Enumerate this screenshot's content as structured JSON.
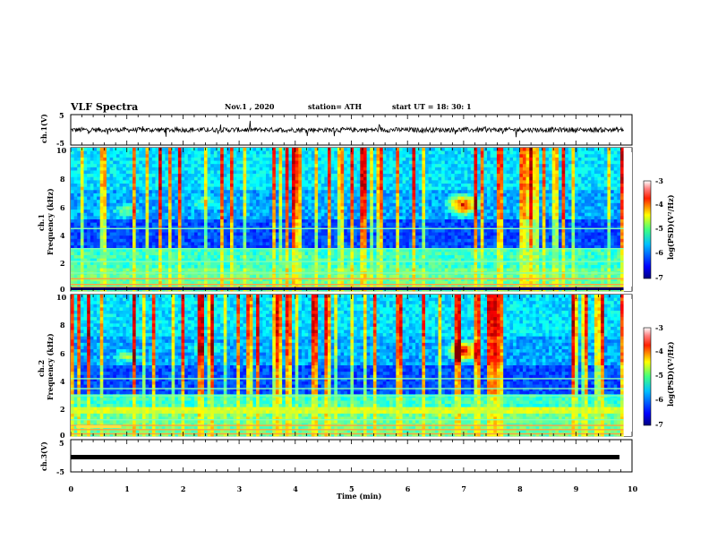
{
  "header": {
    "title": "VLF Spectra",
    "date": "Nov.1  , 2020",
    "station": "station= ATH",
    "start": "start  UT =   18: 30: 1"
  },
  "chart_data": [
    {
      "type": "line",
      "panel": "ch1_waveform",
      "ylabel": "ch.1(V)",
      "ylim": [
        -5,
        5
      ],
      "yticks": [
        "5",
        "-5"
      ],
      "description_values": {
        "baseline": 0,
        "noise_amplitude": 1
      }
    },
    {
      "type": "heatmap",
      "panel": "ch1_spectrogram",
      "ylabel": [
        "ch.1",
        "Frequency  (kHz)"
      ],
      "ylim": [
        0,
        10
      ],
      "yticks": [
        "0",
        "2",
        "4",
        "6",
        "8",
        "10"
      ],
      "colorbar": {
        "label": "log(PSD)(V²/Hz)",
        "range": [
          -7,
          -3
        ],
        "ticks": [
          "-3",
          "-4",
          "-5",
          "-6",
          "-7"
        ]
      },
      "features": {
        "emission_center_min": 7.0,
        "emission_center_khz": 6.0
      }
    },
    {
      "type": "heatmap",
      "panel": "ch2_spectrogram",
      "ylabel": [
        "ch.2",
        "Frequency  (kHz)"
      ],
      "ylim": [
        0,
        10
      ],
      "yticks": [
        "0",
        "2",
        "4",
        "6",
        "8",
        "10"
      ],
      "colorbar": {
        "label": "log(PSD)(V²/Hz)",
        "range": [
          -7,
          -3
        ],
        "ticks": [
          "-3",
          "-4",
          "-5",
          "-6",
          "-7"
        ]
      },
      "features": {
        "emission_center_min": 7.0,
        "emission_center_khz": 6.0
      }
    },
    {
      "type": "line",
      "panel": "ch3_waveform",
      "ylabel": "ch.3(V)",
      "ylim": [
        -5,
        5
      ],
      "yticks": [
        "5",
        "-5"
      ],
      "description_values": {
        "baseline": 0
      }
    }
  ],
  "xaxis": {
    "label": "Time  (min)",
    "range": [
      0,
      10
    ],
    "ticks": [
      "0",
      "1",
      "2",
      "3",
      "4",
      "5",
      "6",
      "7",
      "8",
      "9",
      "10"
    ],
    "data_end": 9.85
  },
  "colors": {
    "jet": [
      "#00008f",
      "#0000ff",
      "#0080ff",
      "#00ffff",
      "#80ff80",
      "#ffff00",
      "#ff8000",
      "#ff0000",
      "#800000"
    ]
  }
}
